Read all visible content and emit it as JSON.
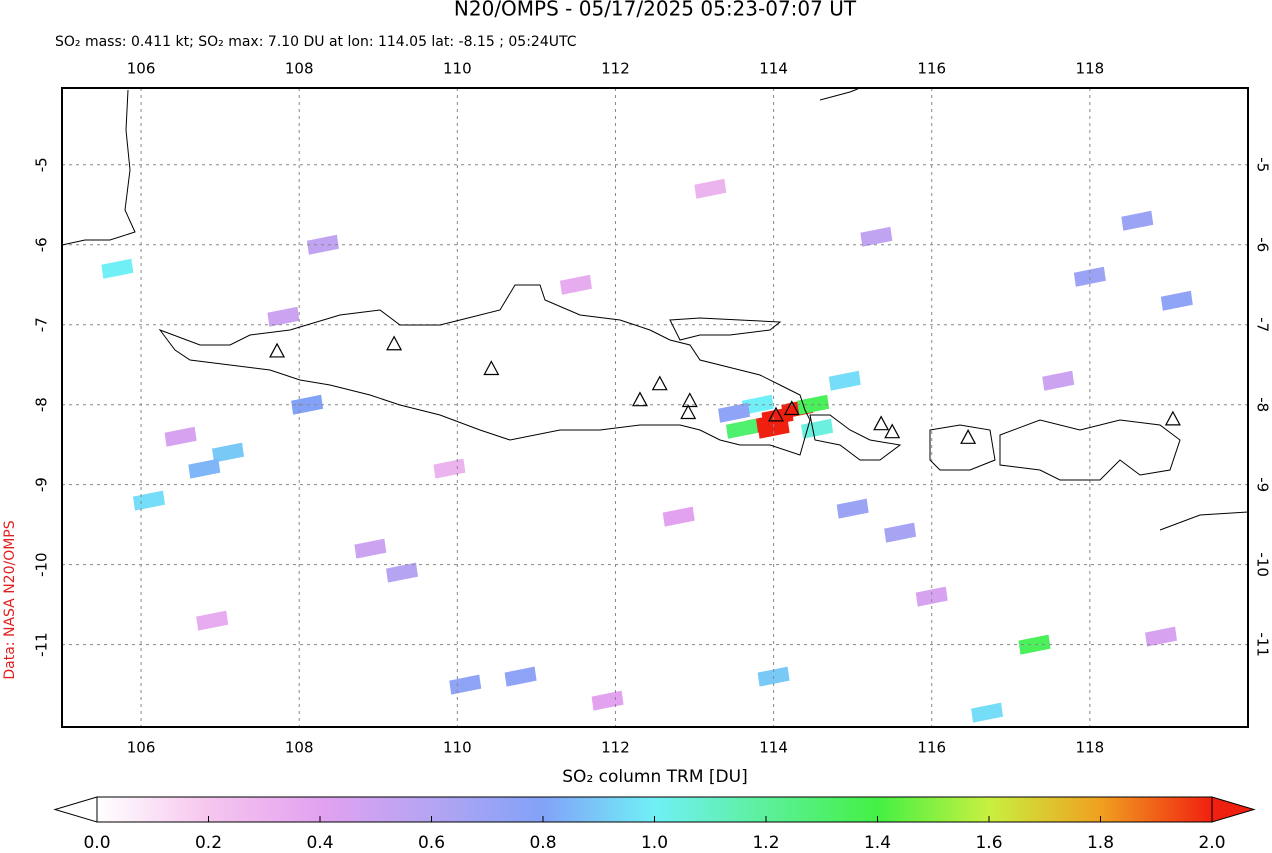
{
  "header": {
    "title": "N20/OMPS - 05/17/2025 05:23-07:07 UT",
    "subtitle": "SO₂ mass: 0.411 kt; SO₂ max: 7.10 DU at lon: 114.05 lat: -8.15 ; 05:24UTC",
    "credit": "Data: NASA N20/OMPS"
  },
  "map": {
    "xlim": [
      105,
      120
    ],
    "ylim": [
      -4.04,
      -12.03
    ],
    "xticks": [
      106,
      108,
      110,
      112,
      114,
      116,
      118
    ],
    "yticks": [
      -5,
      -6,
      -7,
      -8,
      -9,
      -10,
      -11
    ],
    "grid": true,
    "volcanoes": {
      "lon": [
        107.72,
        109.2,
        110.43,
        112.31,
        112.56,
        112.94,
        112.92,
        114.03,
        114.23,
        115.36,
        115.5,
        116.46,
        119.05
      ],
      "lat": [
        -7.34,
        -7.25,
        -7.56,
        -7.95,
        -7.75,
        -7.96,
        -8.11,
        -8.14,
        -8.06,
        -8.25,
        -8.35,
        -8.42,
        -8.19
      ]
    },
    "pixels": {
      "lon": [
        114.05,
        113.85,
        114.3,
        114.0,
        113.6,
        114.5,
        113.8,
        114.55,
        114.9,
        113.5,
        105.7,
        107.1,
        106.8,
        106.1,
        108.1,
        117.3,
        116.7,
        114.0,
        110.1,
        110.8,
        108.3,
        107.8,
        109.3,
        108.9,
        106.5,
        115.0,
        115.6,
        118.6,
        119.1,
        118.0,
        111.5,
        112.8,
        116.0,
        117.6,
        109.9,
        106.9,
        111.9,
        113.2,
        115.3,
        118.9
      ],
      "lat": [
        -8.15,
        -8.25,
        -8.05,
        -8.3,
        -8.3,
        -8.0,
        -8.0,
        -8.3,
        -7.7,
        -8.1,
        -6.3,
        -8.6,
        -8.8,
        -9.2,
        -8.0,
        -11.0,
        -11.85,
        -11.4,
        -11.5,
        -11.4,
        -6.0,
        -6.9,
        -10.1,
        -9.8,
        -8.4,
        -9.3,
        -9.6,
        -5.7,
        -6.7,
        -6.4,
        -6.5,
        -9.4,
        -10.4,
        -7.7,
        -8.8,
        -10.7,
        -11.7,
        -5.3,
        -5.9,
        -10.9
      ],
      "values": [
        7.1,
        3.2,
        2.6,
        2.3,
        1.3,
        1.35,
        1.0,
        1.05,
        0.95,
        0.75,
        1.0,
        0.9,
        0.85,
        0.95,
        0.8,
        1.35,
        0.95,
        0.9,
        0.75,
        0.75,
        0.55,
        0.5,
        0.6,
        0.5,
        0.45,
        0.7,
        0.65,
        0.7,
        0.75,
        0.7,
        0.35,
        0.4,
        0.45,
        0.5,
        0.3,
        0.35,
        0.4,
        0.3,
        0.55,
        0.45
      ]
    }
  },
  "colorbar": {
    "label": "SO₂ column TRM [DU]",
    "clim": [
      0,
      2
    ],
    "colors": [
      "#ffffff",
      "#f6c6ee",
      "#e2a2f0",
      "#b4a4f2",
      "#82a2f8",
      "#70f0f6",
      "#5cf09a",
      "#44f044",
      "#c8f040",
      "#f0a020",
      "#f02010"
    ],
    "ticks": [
      {
        "value": 0,
        "label": "0.0"
      },
      {
        "value": 0.2,
        "label": "0.2"
      },
      {
        "value": 0.4,
        "label": "0.4"
      },
      {
        "value": 0.6,
        "label": "0.6"
      },
      {
        "value": 0.8,
        "label": "0.8"
      },
      {
        "value": 1.0,
        "label": "1.0"
      },
      {
        "value": 1.2,
        "label": "1.2"
      },
      {
        "value": 1.4,
        "label": "1.4"
      },
      {
        "value": 1.6,
        "label": "1.6"
      },
      {
        "value": 1.8,
        "label": "1.8"
      },
      {
        "value": 2.0,
        "label": "2.0"
      }
    ]
  }
}
